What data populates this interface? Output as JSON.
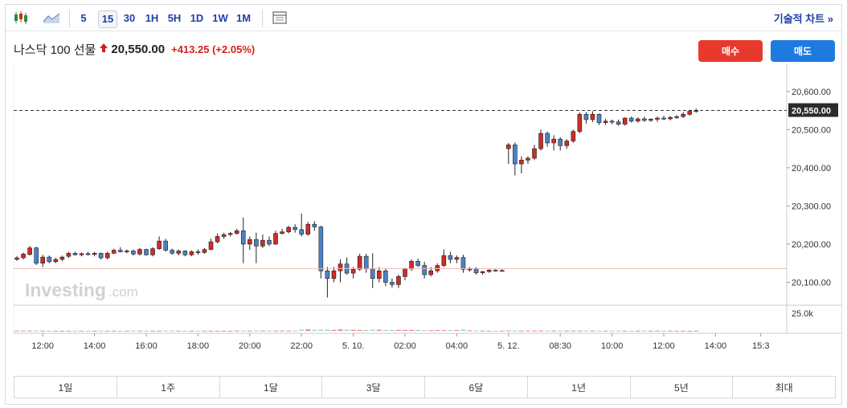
{
  "toolbar": {
    "timeframes": [
      "5",
      "15",
      "30",
      "1H",
      "5H",
      "1D",
      "1W",
      "1M"
    ],
    "active_timeframe": "15",
    "technical_chart_label": "기술적 차트 »"
  },
  "instrument": {
    "name": "나스닥 100 선물",
    "price": "20,550.00",
    "change": "+413.25",
    "change_pct": "(+2.05%)",
    "direction_color": "#d91e18"
  },
  "buttons": {
    "buy": "매수",
    "sell": "매도"
  },
  "watermark": {
    "brand": "Investing",
    "suffix": ".com"
  },
  "chart_data": {
    "type": "candlestick",
    "y_ticks": [
      "20,600.00",
      "20,500.00",
      "20,400.00",
      "20,300.00",
      "20,200.00",
      "20,100.00"
    ],
    "y_tick_values": [
      20600,
      20500,
      20400,
      20300,
      20200,
      20100
    ],
    "current_price_label": "20,550.00",
    "current_price": 20550,
    "reference_line": 20136,
    "ylim": [
      20040,
      20650
    ],
    "x_ticks": [
      "12:00",
      "14:00",
      "16:00",
      "18:00",
      "20:00",
      "22:00",
      "5. 10.",
      "02:00",
      "04:00",
      "5. 12.",
      "08:30",
      "10:00",
      "12:00",
      "14:00",
      "15:3"
    ],
    "x_tick_index": [
      4,
      12,
      20,
      28,
      36,
      44,
      52,
      60,
      68,
      76,
      84,
      92,
      100,
      108,
      115
    ],
    "volume_axis_label": "25.0k",
    "volume_ref": 25000,
    "candles": [
      [
        20160,
        20168,
        20156,
        20164,
        300
      ],
      [
        20164,
        20178,
        20160,
        20174,
        500
      ],
      [
        20173,
        20195,
        20170,
        20190,
        400
      ],
      [
        20190,
        20193,
        20145,
        20150,
        400
      ],
      [
        20150,
        20172,
        20140,
        20166,
        300
      ],
      [
        20166,
        20170,
        20150,
        20154,
        300
      ],
      [
        20154,
        20164,
        20150,
        20160,
        300
      ],
      [
        20160,
        20170,
        20155,
        20166,
        250
      ],
      [
        20168,
        20180,
        20164,
        20176,
        250
      ],
      [
        20176,
        20180,
        20170,
        20172,
        250
      ],
      [
        20172,
        20178,
        20168,
        20175,
        250
      ],
      [
        20175,
        20180,
        20170,
        20173,
        250
      ],
      [
        20173,
        20180,
        20168,
        20176,
        250
      ],
      [
        20176,
        20178,
        20160,
        20164,
        300
      ],
      [
        20164,
        20180,
        20160,
        20176,
        300
      ],
      [
        20176,
        20188,
        20174,
        20184,
        300
      ],
      [
        20184,
        20192,
        20178,
        20180,
        300
      ],
      [
        20180,
        20186,
        20176,
        20182,
        300
      ],
      [
        20182,
        20186,
        20170,
        20174,
        300
      ],
      [
        20174,
        20190,
        20170,
        20186,
        300
      ],
      [
        20186,
        20188,
        20170,
        20172,
        300
      ],
      [
        20172,
        20192,
        20168,
        20188,
        300
      ],
      [
        20188,
        20220,
        20185,
        20208,
        350
      ],
      [
        20208,
        20214,
        20180,
        20184,
        400
      ],
      [
        20184,
        20188,
        20172,
        20176,
        300
      ],
      [
        20176,
        20186,
        20170,
        20182,
        300
      ],
      [
        20182,
        20184,
        20168,
        20172,
        300
      ],
      [
        20172,
        20184,
        20168,
        20180,
        300
      ],
      [
        20180,
        20186,
        20172,
        20178,
        300
      ],
      [
        20178,
        20190,
        20175,
        20186,
        300
      ],
      [
        20186,
        20214,
        20184,
        20206,
        300
      ],
      [
        20206,
        20228,
        20202,
        20220,
        300
      ],
      [
        20220,
        20230,
        20214,
        20225,
        300
      ],
      [
        20225,
        20232,
        20220,
        20228,
        300
      ],
      [
        20228,
        20240,
        20225,
        20235,
        350
      ],
      [
        20235,
        20270,
        20150,
        20200,
        350
      ],
      [
        20200,
        20220,
        20185,
        20212,
        350
      ],
      [
        20212,
        20230,
        20150,
        20195,
        500
      ],
      [
        20195,
        20225,
        20190,
        20210,
        450
      ],
      [
        20210,
        20220,
        20195,
        20200,
        350
      ],
      [
        20200,
        20235,
        20198,
        20228,
        400
      ],
      [
        20228,
        20240,
        20225,
        20232,
        400
      ],
      [
        20232,
        20248,
        20228,
        20244,
        350
      ],
      [
        20244,
        20252,
        20230,
        20238,
        400
      ],
      [
        20238,
        20280,
        20220,
        20226,
        1600
      ],
      [
        20226,
        20258,
        20222,
        20252,
        2200
      ],
      [
        20252,
        20260,
        20235,
        20245,
        1400
      ],
      [
        20245,
        20248,
        20110,
        20130,
        1700
      ],
      [
        20130,
        20140,
        20060,
        20110,
        1800
      ],
      [
        20110,
        20140,
        20100,
        20130,
        1500
      ],
      [
        20130,
        20160,
        20100,
        20148,
        2200
      ],
      [
        20148,
        20165,
        20120,
        20124,
        1700
      ],
      [
        20124,
        20140,
        20110,
        20134,
        1500
      ],
      [
        20134,
        20175,
        20130,
        20168,
        1400
      ],
      [
        20168,
        20175,
        20125,
        20135,
        1300
      ],
      [
        20135,
        20176,
        20085,
        20110,
        1500
      ],
      [
        20110,
        20140,
        20100,
        20130,
        1600
      ],
      [
        20130,
        20135,
        20090,
        20100,
        1300
      ],
      [
        20100,
        20110,
        20086,
        20094,
        1300
      ],
      [
        20094,
        20120,
        20085,
        20115,
        1500
      ],
      [
        20115,
        20138,
        20105,
        20135,
        1400
      ],
      [
        20135,
        20160,
        20130,
        20155,
        1400
      ],
      [
        20155,
        20162,
        20140,
        20144,
        1300
      ],
      [
        20144,
        20154,
        20110,
        20120,
        1000
      ],
      [
        20120,
        20140,
        20115,
        20130,
        900
      ],
      [
        20130,
        20150,
        20125,
        20144,
        1000
      ],
      [
        20144,
        20186,
        20140,
        20170,
        1000
      ],
      [
        20170,
        20180,
        20150,
        20160,
        1000
      ],
      [
        20160,
        20170,
        20150,
        20165,
        1300
      ],
      [
        20165,
        20172,
        20125,
        20134,
        1800
      ],
      [
        20134,
        20140,
        20128,
        20135,
        800
      ],
      [
        20135,
        20140,
        20120,
        20125,
        500
      ],
      [
        20125,
        20130,
        20120,
        20128,
        350
      ],
      [
        20128,
        20134,
        20125,
        20132,
        300
      ],
      [
        20132,
        20134,
        20128,
        20130,
        300
      ],
      [
        20130,
        20134,
        20128,
        20131,
        300
      ],
      [
        20450,
        20465,
        20410,
        20460,
        600
      ],
      [
        20460,
        20466,
        20380,
        20410,
        500
      ],
      [
        20410,
        20430,
        20385,
        20420,
        400
      ],
      [
        20420,
        20430,
        20410,
        20425,
        500
      ],
      [
        20425,
        20460,
        20420,
        20450,
        500
      ],
      [
        20450,
        20500,
        20445,
        20490,
        500
      ],
      [
        20490,
        20495,
        20455,
        20465,
        400
      ],
      [
        20465,
        20485,
        20445,
        20475,
        400
      ],
      [
        20475,
        20480,
        20445,
        20458,
        400
      ],
      [
        20458,
        20475,
        20450,
        20470,
        400
      ],
      [
        20470,
        20500,
        20465,
        20495,
        400
      ],
      [
        20495,
        20545,
        20490,
        20540,
        400
      ],
      [
        20540,
        20546,
        20516,
        20526,
        400
      ],
      [
        20526,
        20548,
        20520,
        20540,
        400
      ],
      [
        20540,
        20542,
        20512,
        20518,
        400
      ],
      [
        20518,
        20528,
        20512,
        20522,
        300
      ],
      [
        20522,
        20526,
        20514,
        20520,
        300
      ],
      [
        20520,
        20526,
        20510,
        20514,
        300
      ],
      [
        20514,
        20532,
        20510,
        20530,
        300
      ],
      [
        20530,
        20534,
        20518,
        20522,
        300
      ],
      [
        20522,
        20532,
        20518,
        20528,
        300
      ],
      [
        20528,
        20534,
        20520,
        20524,
        300
      ],
      [
        20524,
        20530,
        20520,
        20527,
        300
      ],
      [
        20527,
        20534,
        20520,
        20530,
        300
      ],
      [
        20530,
        20536,
        20525,
        20528,
        300
      ],
      [
        20528,
        20535,
        20524,
        20532,
        300
      ],
      [
        20532,
        20538,
        20528,
        20534,
        300
      ],
      [
        20534,
        20546,
        20530,
        20540,
        300
      ],
      [
        20540,
        20552,
        20536,
        20548,
        300
      ],
      [
        20548,
        20555,
        20544,
        20550,
        300
      ]
    ],
    "gap_positions": [
      76
    ]
  },
  "range_tabs": [
    "1일",
    "1주",
    "1달",
    "3달",
    "6달",
    "1년",
    "5년",
    "최대"
  ],
  "colors": {
    "up": "#d02b27",
    "down": "#4a82c6",
    "vol_up": "#e9898b",
    "vol_down": "#9fd6ad",
    "accent": "#1f3fa8"
  }
}
